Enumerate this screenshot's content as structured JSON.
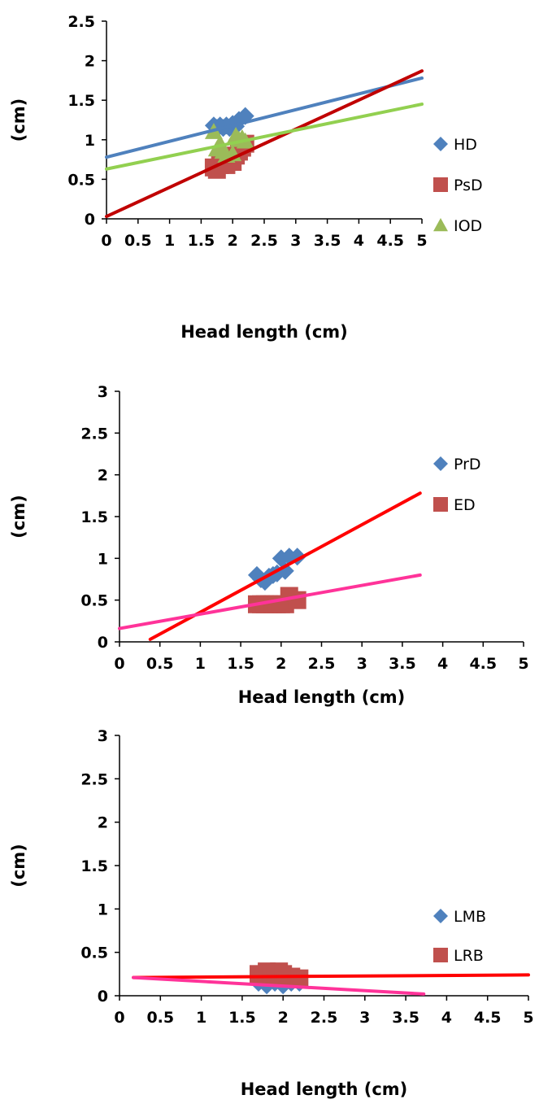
{
  "chart_data": [
    {
      "type": "scatter",
      "xlabel": "Head length (cm)",
      "ylabel": "(cm)",
      "xlim": [
        0,
        5
      ],
      "ylim": [
        0,
        2.5
      ],
      "xticks": [
        "0",
        "0.5",
        "1",
        "1.5",
        "2",
        "2.5",
        "3",
        "3.5",
        "4",
        "4.5",
        "5"
      ],
      "yticks": [
        "0",
        "0.5",
        "1",
        "1.5",
        "2",
        "2.5"
      ],
      "legend_position": "right",
      "grid": false,
      "series": [
        {
          "name": "HD",
          "marker": "diamond",
          "color": "#4f81bd",
          "points": [
            [
              1.7,
              1.18
            ],
            [
              1.75,
              1.15
            ],
            [
              1.8,
              1.18
            ],
            [
              1.85,
              1.15
            ],
            [
              1.9,
              1.18
            ],
            [
              1.95,
              1.15
            ],
            [
              2.0,
              1.2
            ],
            [
              2.05,
              1.17
            ],
            [
              2.1,
              1.25
            ],
            [
              2.2,
              1.3
            ]
          ]
        },
        {
          "name": "PsD",
          "marker": "square",
          "color": "#c0504d",
          "points": [
            [
              1.7,
              0.65
            ],
            [
              1.75,
              0.62
            ],
            [
              1.8,
              0.68
            ],
            [
              1.85,
              0.7
            ],
            [
              1.9,
              0.68
            ],
            [
              2.0,
              0.72
            ],
            [
              2.05,
              0.8
            ],
            [
              2.1,
              0.85
            ],
            [
              2.15,
              0.9
            ],
            [
              2.2,
              0.95
            ]
          ]
        },
        {
          "name": "IOD",
          "marker": "triangle",
          "color": "#9bbb59",
          "points": [
            [
              1.7,
              1.1
            ],
            [
              1.75,
              0.88
            ],
            [
              1.8,
              0.95
            ],
            [
              1.85,
              0.85
            ],
            [
              1.9,
              0.8
            ],
            [
              2.0,
              0.82
            ],
            [
              2.05,
              1.05
            ],
            [
              2.1,
              1.0
            ],
            [
              2.15,
              1.02
            ],
            [
              2.2,
              0.98
            ]
          ]
        }
      ],
      "trendlines": [
        {
          "color": "#4f81bd",
          "from": [
            0,
            0.78
          ],
          "to": [
            5,
            1.78
          ]
        },
        {
          "color": "#c00000",
          "from": [
            0,
            0.03
          ],
          "to": [
            5,
            1.87
          ]
        },
        {
          "color": "#92d050",
          "from": [
            0,
            0.63
          ],
          "to": [
            5,
            1.45
          ]
        }
      ]
    },
    {
      "type": "scatter",
      "xlabel": "Head length (cm)",
      "ylabel": "(cm)",
      "xlim": [
        0,
        5
      ],
      "ylim": [
        0,
        3
      ],
      "xticks": [
        "0",
        "0.5",
        "1",
        "1.5",
        "2",
        "2.5",
        "3",
        "3.5",
        "4",
        "4.5",
        "5"
      ],
      "yticks": [
        "0",
        "0.5",
        "1",
        "1.5",
        "2",
        "2.5",
        "3"
      ],
      "legend_position": "right",
      "grid": false,
      "series": [
        {
          "name": "PrD",
          "marker": "diamond",
          "color": "#4f81bd",
          "points": [
            [
              1.7,
              0.8
            ],
            [
              1.75,
              0.75
            ],
            [
              1.8,
              0.72
            ],
            [
              1.85,
              0.78
            ],
            [
              1.9,
              0.8
            ],
            [
              1.95,
              0.82
            ],
            [
              2.0,
              1.0
            ],
            [
              2.05,
              0.85
            ],
            [
              2.1,
              1.02
            ],
            [
              2.2,
              1.02
            ]
          ]
        },
        {
          "name": "ED",
          "marker": "square",
          "color": "#c0504d",
          "points": [
            [
              1.7,
              0.45
            ],
            [
              1.75,
              0.45
            ],
            [
              1.8,
              0.45
            ],
            [
              1.85,
              0.45
            ],
            [
              1.9,
              0.45
            ],
            [
              1.95,
              0.45
            ],
            [
              2.0,
              0.45
            ],
            [
              2.05,
              0.45
            ],
            [
              2.1,
              0.55
            ],
            [
              2.2,
              0.5
            ]
          ]
        }
      ],
      "trendlines": [
        {
          "color": "#ff0000",
          "from": [
            0.38,
            0.03
          ],
          "to": [
            3.72,
            1.78
          ]
        },
        {
          "color": "#ff3399",
          "from": [
            0,
            0.16
          ],
          "to": [
            3.72,
            0.8
          ]
        }
      ]
    },
    {
      "type": "scatter",
      "xlabel": "Head length (cm)",
      "ylabel": "(cm)",
      "xlim": [
        0,
        5
      ],
      "ylim": [
        0,
        3
      ],
      "xticks": [
        "0",
        "0.5",
        "1",
        "1.5",
        "2",
        "2.5",
        "3",
        "3.5",
        "4",
        "4.5",
        "5"
      ],
      "yticks": [
        "0",
        "0.5",
        "1",
        "1.5",
        "2",
        "2.5",
        "3"
      ],
      "legend_position": "right",
      "grid": false,
      "series": [
        {
          "name": "LMB",
          "marker": "diamond",
          "color": "#4f81bd",
          "points": [
            [
              1.7,
              0.15
            ],
            [
              1.8,
              0.12
            ],
            [
              1.9,
              0.15
            ],
            [
              2.0,
              0.12
            ],
            [
              2.1,
              0.15
            ],
            [
              2.2,
              0.15
            ]
          ]
        },
        {
          "name": "LRB",
          "marker": "square",
          "color": "#c0504d",
          "points": [
            [
              1.7,
              0.25
            ],
            [
              1.75,
              0.22
            ],
            [
              1.8,
              0.28
            ],
            [
              1.85,
              0.25
            ],
            [
              1.9,
              0.22
            ],
            [
              1.95,
              0.28
            ],
            [
              2.0,
              0.25
            ],
            [
              2.05,
              0.2
            ],
            [
              2.1,
              0.22
            ],
            [
              2.2,
              0.2
            ]
          ]
        }
      ],
      "trendlines": [
        {
          "color": "#ff0000",
          "from": [
            0.17,
            0.21
          ],
          "to": [
            5,
            0.24
          ]
        },
        {
          "color": "#ff3399",
          "from": [
            0.17,
            0.21
          ],
          "to": [
            3.72,
            0.02
          ]
        }
      ]
    }
  ]
}
